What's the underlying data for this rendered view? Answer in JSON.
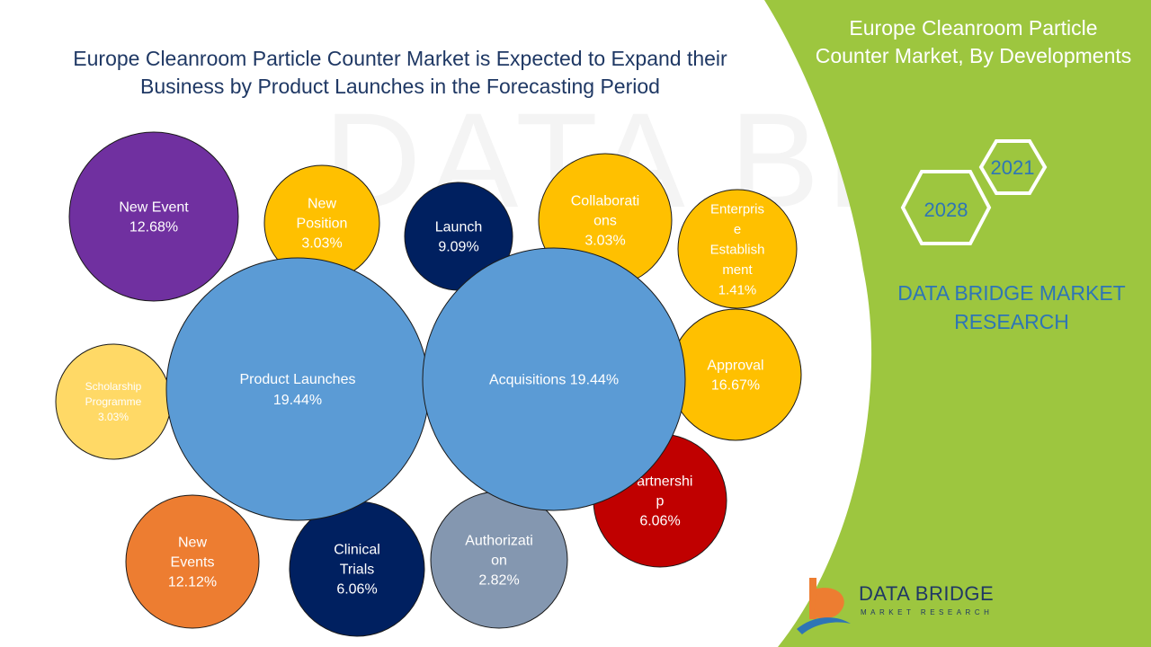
{
  "title_lines": [
    "Europe Cleanroom Particle Counter Market is Expected to Expand their",
    "Business by Product Launches in the Forecasting Period"
  ],
  "side_panel": {
    "title_lines": [
      "Europe Cleanroom Particle",
      "Counter Market, By Developments"
    ],
    "year_start": "2021",
    "year_end": "2028",
    "brand_lines": [
      "DATA BRIDGE MARKET",
      "RESEARCH"
    ],
    "color": "#9dc63f"
  },
  "logo": {
    "name": "DATA BRIDGE",
    "tagline": "MARKET RESEARCH"
  },
  "watermark": "DATA BRIDGE",
  "chart_data": {
    "type": "bubble",
    "title": "Europe Cleanroom Particle Counter Market is Expected to Expand their Business by Product Launches in the Forecasting Period",
    "unit": "%",
    "bubbles": [
      {
        "label_lines": [
          "New Event",
          "12.68%"
        ],
        "category": "New Event",
        "value": 12.68,
        "color": "#7030a0",
        "text_color": "#ffffff"
      },
      {
        "label_lines": [
          "New",
          "Position",
          "3.03%"
        ],
        "category": "New Position",
        "value": 3.03,
        "color": "#ffc000",
        "text_color": "#ffffff"
      },
      {
        "label_lines": [
          "Launch",
          "9.09%"
        ],
        "category": "Launch",
        "value": 9.09,
        "color": "#002060",
        "text_color": "#ffffff"
      },
      {
        "label_lines": [
          "Collaborati",
          "ons",
          "3.03%"
        ],
        "category": "Collaborations",
        "value": 3.03,
        "color": "#ffc000",
        "text_color": "#ffffff"
      },
      {
        "label_lines": [
          "Enterpris",
          "e",
          "Establish",
          "ment",
          "1.41%"
        ],
        "category": "Enterprise Establishment",
        "value": 1.41,
        "color": "#ffc000",
        "text_color": "#ffffff"
      },
      {
        "label_lines": [
          "Approval",
          "16.67%"
        ],
        "category": "Approval",
        "value": 16.67,
        "color": "#ffc000",
        "text_color": "#ffffff"
      },
      {
        "label_lines": [
          "Partnershi",
          "p",
          "6.06%"
        ],
        "category": "Partnership",
        "value": 6.06,
        "color": "#c00000",
        "text_color": "#ffffff"
      },
      {
        "label_lines": [
          "Scholarship",
          "Programme",
          "3.03%"
        ],
        "category": "Scholarship Programme",
        "value": 3.03,
        "color": "#ffd966",
        "text_color": "#ffffff"
      },
      {
        "label_lines": [
          "New",
          "Events",
          "12.12%"
        ],
        "category": "New Events",
        "value": 12.12,
        "color": "#ed7d31",
        "text_color": "#ffffff"
      },
      {
        "label_lines": [
          "Authorizati",
          "on",
          "2.82%"
        ],
        "category": "Authorization",
        "value": 2.82,
        "color": "#8497b0",
        "text_color": "#ffffff"
      },
      {
        "label_lines": [
          "Clinical",
          "Trials",
          "6.06%"
        ],
        "category": "Clinical Trials",
        "value": 6.06,
        "color": "#002060",
        "text_color": "#ffffff"
      },
      {
        "label_lines": [
          "Product Launches",
          "19.44%"
        ],
        "category": "Product Launches",
        "value": 19.44,
        "color": "#5b9bd5",
        "text_color": "#ffffff"
      },
      {
        "label_lines": [
          "Acquisitions 19.44%"
        ],
        "category": "Acquisitions",
        "value": 19.44,
        "color": "#5b9bd5",
        "text_color": "#ffffff"
      }
    ]
  }
}
